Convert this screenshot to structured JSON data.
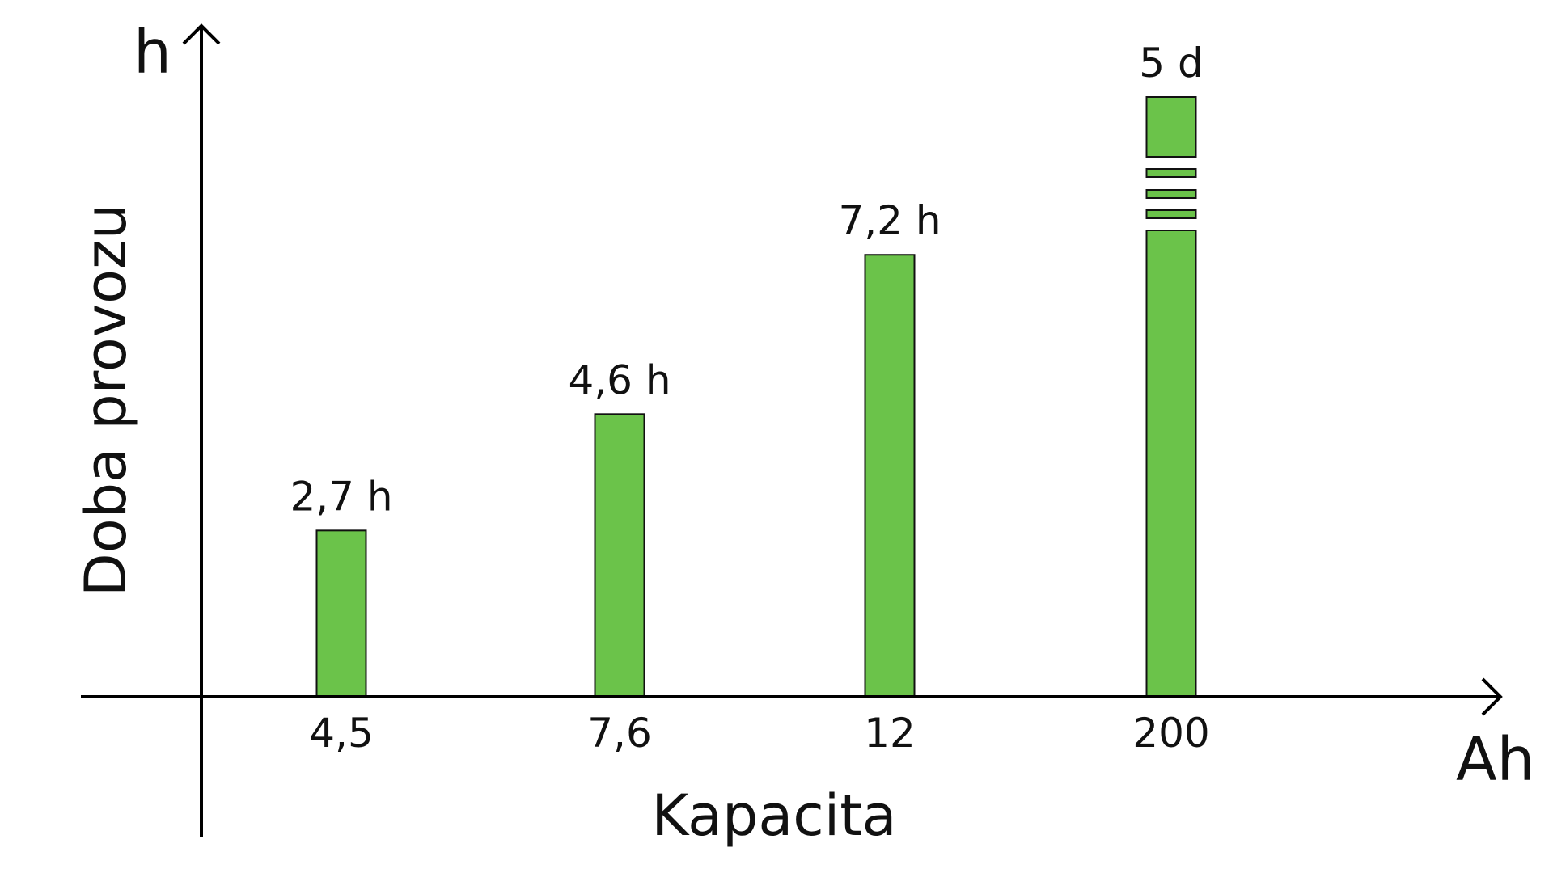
{
  "chart_data": {
    "type": "bar",
    "title": "",
    "xlabel": "Kapacita",
    "ylabel": "Doba provozu",
    "x_unit": "Ah",
    "y_unit": "h",
    "categories": [
      "4,5",
      "7,6",
      "12",
      "200"
    ],
    "values": [
      2.7,
      4.6,
      7.2,
      120
    ],
    "value_labels": [
      "2,7 h",
      "4,6 h",
      "7,2 h",
      "5 d"
    ],
    "axis_break_on_last_bar": true,
    "grid": false,
    "legend": "none",
    "colors": {
      "bar": "#6bc34a",
      "bar_outline": "#111111",
      "axis": "#000000"
    }
  }
}
